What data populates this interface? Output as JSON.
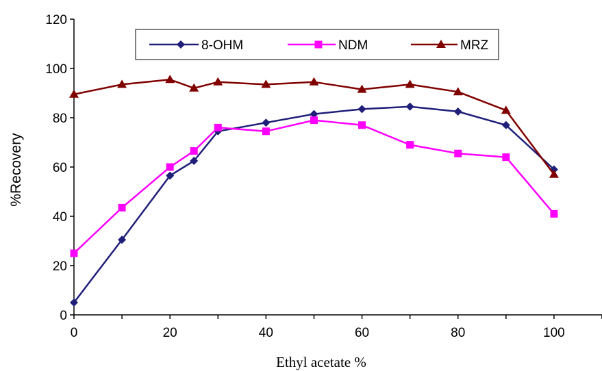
{
  "chart_data": {
    "type": "line",
    "title": "",
    "xlabel": "Ethyl acetate %",
    "ylabel": "%Recovery",
    "xlim": [
      0,
      110
    ],
    "ylim": [
      0,
      120
    ],
    "xticks": [
      0,
      20,
      40,
      60,
      80,
      100
    ],
    "yticks": [
      0,
      20,
      40,
      60,
      80,
      100,
      120
    ],
    "grid": false,
    "legend_position": "top",
    "series": [
      {
        "name": "8-OHM",
        "color": "#1f1f7a",
        "marker": "diamond",
        "x": [
          0,
          10,
          20,
          25,
          30,
          40,
          50,
          60,
          70,
          80,
          90,
          100
        ],
        "y": [
          5,
          30.5,
          56.5,
          62.5,
          74.5,
          78,
          81.5,
          83.5,
          84.5,
          82.5,
          77,
          59
        ]
      },
      {
        "name": "NDM",
        "color": "#ff00ff",
        "marker": "square",
        "x": [
          0,
          10,
          20,
          25,
          30,
          40,
          50,
          60,
          70,
          80,
          90,
          100
        ],
        "y": [
          25,
          43.5,
          60,
          66.5,
          76,
          74.5,
          79,
          77,
          69,
          65.5,
          64,
          41
        ]
      },
      {
        "name": "MRZ",
        "color": "#800000",
        "marker": "triangle",
        "x": [
          0,
          10,
          20,
          25,
          30,
          40,
          50,
          60,
          70,
          80,
          90,
          100
        ],
        "y": [
          89.5,
          93.5,
          95.5,
          92,
          94.5,
          93.5,
          94.5,
          91.5,
          93.5,
          90.5,
          83,
          57
        ]
      }
    ]
  }
}
